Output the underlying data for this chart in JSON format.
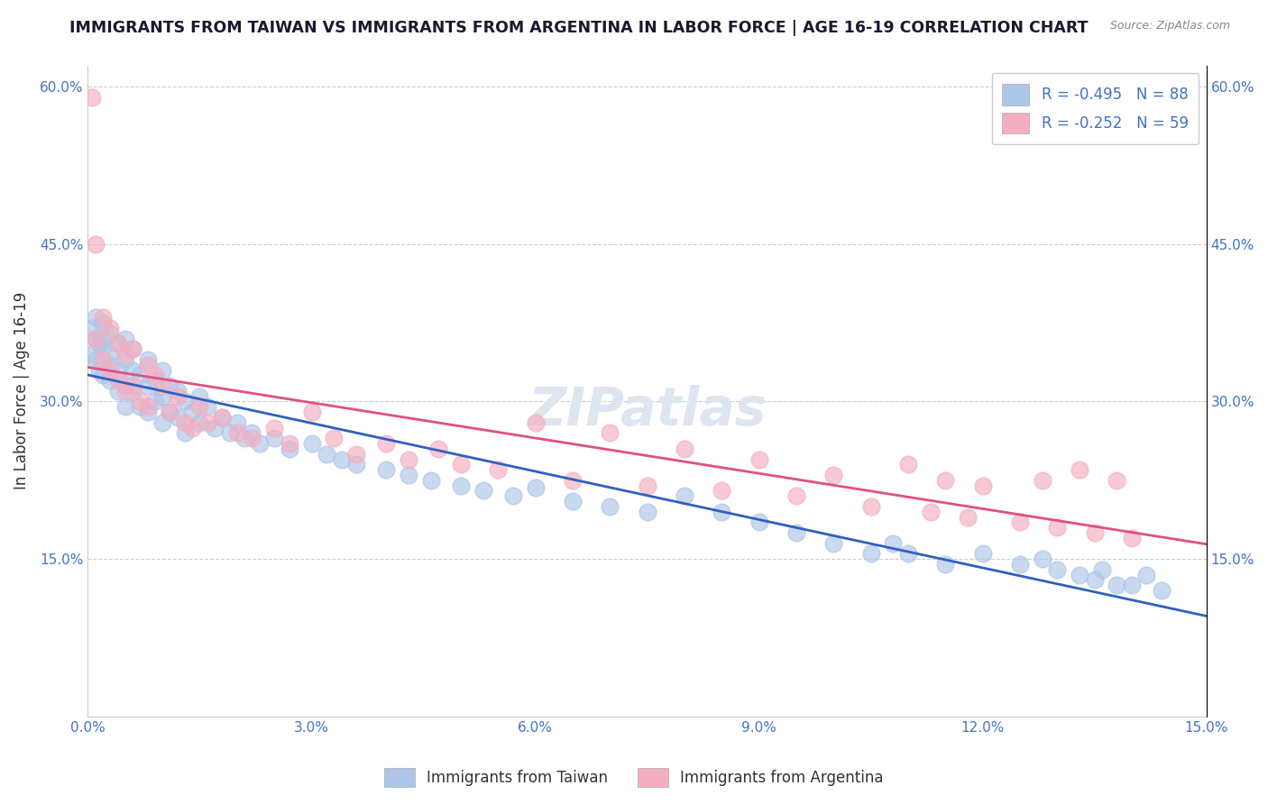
{
  "title": "IMMIGRANTS FROM TAIWAN VS IMMIGRANTS FROM ARGENTINA IN LABOR FORCE | AGE 16-19 CORRELATION CHART",
  "source_text": "Source: ZipAtlas.com",
  "ylabel": "In Labor Force | Age 16-19",
  "xlim": [
    0.0,
    0.15
  ],
  "ylim": [
    0.0,
    0.62
  ],
  "xtick_vals": [
    0.0,
    0.03,
    0.06,
    0.09,
    0.12,
    0.15
  ],
  "xtick_labels": [
    "0.0%",
    "3.0%",
    "6.0%",
    "9.0%",
    "12.0%",
    "15.0%"
  ],
  "ytick_positions": [
    0.15,
    0.3,
    0.45,
    0.6
  ],
  "ytick_labels": [
    "15.0%",
    "30.0%",
    "45.0%",
    "60.0%"
  ],
  "taiwan_color": "#adc6e8",
  "argentina_color": "#f5aec0",
  "taiwan_line_color": "#3060c0",
  "argentina_line_color": "#e05080",
  "taiwan_R": -0.495,
  "taiwan_N": 88,
  "argentina_R": -0.252,
  "argentina_N": 59,
  "legend_taiwan_label": "R = -0.495   N = 88",
  "legend_argentina_label": "R = -0.252   N = 59",
  "background_color": "#ffffff",
  "grid_color": "#cccccc",
  "title_color": "#1a1a2e",
  "axis_label_color": "#333333",
  "tick_label_color": "#4472c4",
  "watermark_color": "#dde5f0",
  "taiwan_x": [
    0.0005,
    0.0005,
    0.001,
    0.001,
    0.001,
    0.0015,
    0.0015,
    0.002,
    0.002,
    0.002,
    0.002,
    0.003,
    0.003,
    0.003,
    0.003,
    0.004,
    0.004,
    0.004,
    0.005,
    0.005,
    0.005,
    0.005,
    0.006,
    0.006,
    0.006,
    0.007,
    0.007,
    0.008,
    0.008,
    0.008,
    0.009,
    0.009,
    0.01,
    0.01,
    0.01,
    0.011,
    0.011,
    0.012,
    0.012,
    0.013,
    0.013,
    0.014,
    0.015,
    0.015,
    0.016,
    0.017,
    0.018,
    0.019,
    0.02,
    0.021,
    0.022,
    0.023,
    0.025,
    0.027,
    0.03,
    0.032,
    0.034,
    0.036,
    0.04,
    0.043,
    0.046,
    0.05,
    0.053,
    0.057,
    0.06,
    0.065,
    0.07,
    0.075,
    0.08,
    0.085,
    0.09,
    0.095,
    0.1,
    0.105,
    0.108,
    0.11,
    0.115,
    0.12,
    0.125,
    0.128,
    0.13,
    0.133,
    0.135,
    0.136,
    0.138,
    0.14,
    0.142,
    0.144
  ],
  "taiwan_y": [
    0.345,
    0.37,
    0.38,
    0.36,
    0.34,
    0.355,
    0.33,
    0.375,
    0.35,
    0.325,
    0.36,
    0.345,
    0.365,
    0.32,
    0.335,
    0.355,
    0.33,
    0.31,
    0.34,
    0.315,
    0.36,
    0.295,
    0.33,
    0.31,
    0.35,
    0.325,
    0.295,
    0.34,
    0.315,
    0.29,
    0.32,
    0.3,
    0.33,
    0.305,
    0.28,
    0.315,
    0.29,
    0.31,
    0.285,
    0.3,
    0.27,
    0.29,
    0.305,
    0.28,
    0.295,
    0.275,
    0.285,
    0.27,
    0.28,
    0.265,
    0.27,
    0.26,
    0.265,
    0.255,
    0.26,
    0.25,
    0.245,
    0.24,
    0.235,
    0.23,
    0.225,
    0.22,
    0.215,
    0.21,
    0.218,
    0.205,
    0.2,
    0.195,
    0.21,
    0.195,
    0.185,
    0.175,
    0.165,
    0.155,
    0.165,
    0.155,
    0.145,
    0.155,
    0.145,
    0.15,
    0.14,
    0.135,
    0.13,
    0.14,
    0.125,
    0.125,
    0.135,
    0.12
  ],
  "argentina_x": [
    0.0005,
    0.001,
    0.001,
    0.002,
    0.002,
    0.003,
    0.003,
    0.004,
    0.004,
    0.005,
    0.005,
    0.006,
    0.006,
    0.007,
    0.008,
    0.008,
    0.009,
    0.01,
    0.011,
    0.012,
    0.013,
    0.014,
    0.015,
    0.016,
    0.018,
    0.02,
    0.022,
    0.025,
    0.027,
    0.03,
    0.033,
    0.036,
    0.04,
    0.043,
    0.047,
    0.05,
    0.055,
    0.06,
    0.065,
    0.07,
    0.075,
    0.08,
    0.085,
    0.09,
    0.095,
    0.1,
    0.105,
    0.11,
    0.113,
    0.115,
    0.118,
    0.12,
    0.125,
    0.128,
    0.13,
    0.133,
    0.135,
    0.138,
    0.14
  ],
  "argentina_y": [
    0.59,
    0.45,
    0.36,
    0.38,
    0.34,
    0.37,
    0.33,
    0.355,
    0.32,
    0.345,
    0.31,
    0.35,
    0.315,
    0.3,
    0.335,
    0.295,
    0.325,
    0.315,
    0.29,
    0.305,
    0.28,
    0.275,
    0.295,
    0.28,
    0.285,
    0.27,
    0.265,
    0.275,
    0.26,
    0.29,
    0.265,
    0.25,
    0.26,
    0.245,
    0.255,
    0.24,
    0.235,
    0.28,
    0.225,
    0.27,
    0.22,
    0.255,
    0.215,
    0.245,
    0.21,
    0.23,
    0.2,
    0.24,
    0.195,
    0.225,
    0.19,
    0.22,
    0.185,
    0.225,
    0.18,
    0.235,
    0.175,
    0.225,
    0.17
  ]
}
